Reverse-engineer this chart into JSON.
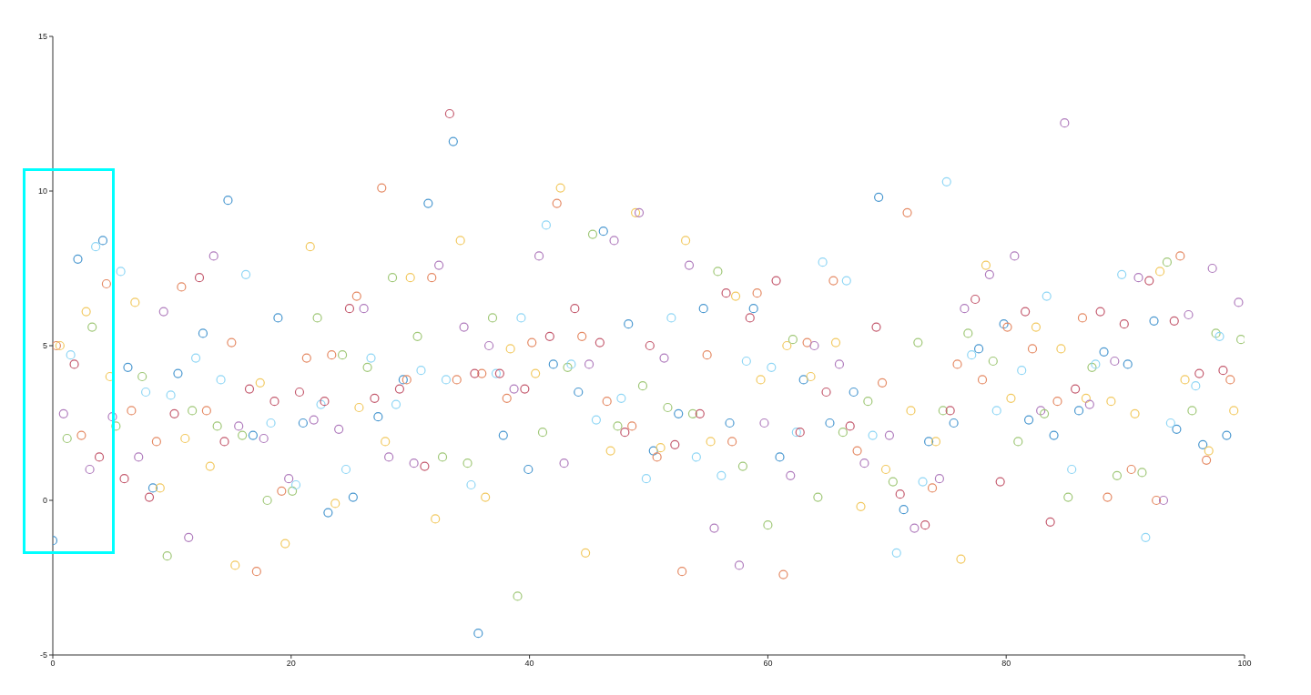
{
  "chart_data": {
    "type": "scatter",
    "marker": "circle",
    "xlim": [
      0,
      100
    ],
    "xticks": [
      0,
      20,
      40,
      60,
      80,
      100
    ],
    "ylim": [
      -5,
      15
    ],
    "yticks": [
      -5,
      0,
      5,
      10,
      15
    ],
    "series": [
      {
        "color": "#4a98d0",
        "x": [
          0,
          2.1,
          4.2,
          6.3,
          8.4,
          10.5,
          12.6,
          14.7,
          16.8,
          18.9,
          21.0,
          23.1,
          25.2,
          27.3,
          29.4,
          31.5,
          33.6,
          35.7,
          37.8,
          39.9,
          42.0,
          44.1,
          46.2,
          48.3,
          50.4,
          52.5,
          54.6,
          56.8,
          58.8,
          61.0,
          63.0,
          65.2,
          67.2,
          69.3,
          71.4,
          73.5,
          75.6,
          77.7,
          79.8,
          81.9,
          84.0,
          86.1,
          88.2,
          90.2,
          92.4,
          94.3,
          96.5,
          98.5
        ],
        "values": [
          -1.3,
          7.8,
          8.4,
          4.3,
          0.4,
          4.1,
          5.4,
          9.7,
          2.1,
          5.9,
          2.5,
          -0.4,
          0.1,
          2.7,
          3.9,
          9.6,
          11.6,
          -4.3,
          2.1,
          1.0,
          4.4,
          3.5,
          8.7,
          5.7,
          1.6,
          2.8,
          6.2,
          2.5,
          6.2,
          1.4,
          3.9,
          2.5,
          3.5,
          9.8,
          -0.3,
          1.9,
          2.5,
          4.9,
          5.7,
          2.6,
          2.1,
          2.9,
          4.8,
          4.4,
          5.8,
          2.3,
          1.8,
          2.1
        ]
      },
      {
        "color": "#e58a64",
        "x": [
          0.3,
          2.4,
          4.5,
          6.6,
          8.7,
          10.8,
          12.9,
          15.0,
          17.1,
          19.2,
          21.3,
          23.4,
          25.5,
          27.6,
          29.7,
          31.8,
          33.9,
          36.0,
          38.1,
          40.2,
          42.3,
          44.4,
          46.5,
          48.6,
          50.7,
          52.8,
          54.9,
          57.0,
          59.1,
          61.3,
          63.3,
          65.5,
          67.5,
          69.6,
          71.7,
          73.8,
          75.9,
          78.0,
          80.1,
          82.2,
          84.3,
          86.4,
          88.5,
          90.5,
          92.6,
          94.6,
          96.8,
          98.8
        ],
        "values": [
          5.0,
          2.1,
          7.0,
          2.9,
          1.9,
          6.9,
          2.9,
          5.1,
          -2.3,
          0.3,
          4.6,
          4.7,
          6.6,
          10.1,
          3.9,
          7.2,
          3.9,
          4.1,
          3.3,
          5.1,
          9.6,
          5.3,
          3.2,
          2.4,
          1.4,
          -2.3,
          4.7,
          1.9,
          6.7,
          -2.4,
          5.1,
          7.1,
          1.6,
          3.8,
          9.3,
          0.4,
          4.4,
          3.9,
          5.6,
          4.9,
          3.2,
          5.9,
          0.1,
          1.0,
          0.0,
          7.9,
          1.3,
          3.9
        ]
      },
      {
        "color": "#f2c960",
        "x": [
          0.6,
          2.8,
          4.8,
          6.9,
          9.0,
          11.1,
          13.2,
          15.3,
          17.4,
          19.5,
          21.6,
          23.7,
          25.7,
          27.9,
          30.0,
          32.1,
          34.2,
          36.3,
          38.4,
          40.5,
          42.6,
          44.7,
          46.8,
          48.9,
          51.0,
          53.1,
          55.2,
          57.3,
          59.4,
          61.6,
          63.6,
          65.7,
          67.8,
          69.9,
          72.0,
          74.1,
          76.2,
          78.3,
          80.4,
          82.5,
          84.6,
          86.7,
          88.8,
          90.8,
          92.9,
          95.0,
          97.0,
          99.1
        ],
        "values": [
          5.0,
          6.1,
          4.0,
          6.4,
          0.4,
          2.0,
          1.1,
          -2.1,
          3.8,
          -1.4,
          8.2,
          -0.1,
          3.0,
          1.9,
          7.2,
          -0.6,
          8.4,
          0.1,
          4.9,
          4.1,
          10.1,
          -1.7,
          1.6,
          9.3,
          1.7,
          8.4,
          1.9,
          6.6,
          3.9,
          5.0,
          4.0,
          5.1,
          -0.2,
          1.0,
          2.9,
          1.9,
          -1.9,
          7.6,
          3.3,
          5.6,
          4.9,
          3.3,
          3.2,
          2.8,
          7.4,
          3.9,
          1.6,
          2.9
        ]
      },
      {
        "color": "#b07cbd",
        "x": [
          0.9,
          3.1,
          5.0,
          7.2,
          9.3,
          11.4,
          13.5,
          15.6,
          17.7,
          19.8,
          21.9,
          24.0,
          26.1,
          28.2,
          30.3,
          32.4,
          34.5,
          36.6,
          38.7,
          40.8,
          42.9,
          45.0,
          47.1,
          49.2,
          51.3,
          53.4,
          55.5,
          57.6,
          59.7,
          61.9,
          63.9,
          66.0,
          68.1,
          70.2,
          72.3,
          74.4,
          76.5,
          78.6,
          80.7,
          82.9,
          84.9,
          87.0,
          89.1,
          91.1,
          93.2,
          95.3,
          97.3,
          99.5
        ],
        "values": [
          2.8,
          1.0,
          2.7,
          1.4,
          6.1,
          -1.2,
          7.9,
          2.4,
          2.0,
          0.7,
          2.6,
          2.3,
          6.2,
          1.4,
          1.2,
          7.6,
          5.6,
          5.0,
          3.6,
          7.9,
          1.2,
          4.4,
          8.4,
          9.3,
          4.6,
          7.6,
          -0.9,
          -2.1,
          2.5,
          0.8,
          5.0,
          4.4,
          1.2,
          2.1,
          -0.9,
          0.7,
          6.2,
          7.3,
          7.9,
          2.9,
          12.2,
          3.1,
          4.5,
          7.2,
          0.0,
          6.0,
          7.5,
          6.4
        ]
      },
      {
        "color": "#a0c878",
        "x": [
          1.2,
          3.3,
          5.3,
          7.5,
          9.6,
          11.7,
          13.8,
          15.9,
          18.0,
          20.1,
          22.2,
          24.3,
          26.4,
          28.5,
          30.6,
          32.7,
          34.8,
          36.9,
          39.0,
          41.1,
          43.2,
          45.3,
          47.4,
          49.5,
          51.6,
          53.7,
          55.8,
          57.9,
          60.0,
          62.1,
          64.2,
          66.3,
          68.4,
          70.5,
          72.6,
          74.7,
          76.8,
          78.9,
          81.0,
          83.2,
          85.2,
          87.2,
          89.3,
          91.4,
          93.5,
          95.6,
          97.6,
          99.7
        ],
        "values": [
          2.0,
          5.6,
          2.4,
          4.0,
          -1.8,
          2.9,
          2.4,
          2.1,
          0.0,
          0.3,
          5.9,
          4.7,
          4.3,
          7.2,
          5.3,
          1.4,
          1.2,
          5.9,
          -3.1,
          2.2,
          4.3,
          8.6,
          2.4,
          3.7,
          3.0,
          2.8,
          7.4,
          1.1,
          -0.8,
          5.2,
          0.1,
          2.2,
          3.2,
          0.6,
          5.1,
          2.9,
          5.4,
          4.5,
          1.9,
          2.8,
          0.1,
          4.3,
          0.8,
          0.9,
          7.7,
          2.9,
          5.4,
          5.2
        ]
      },
      {
        "color": "#8fd6f5",
        "x": [
          1.5,
          3.6,
          5.7,
          7.8,
          9.9,
          12.0,
          14.1,
          16.2,
          18.3,
          20.4,
          22.5,
          24.6,
          26.7,
          28.8,
          30.9,
          33.0,
          35.1,
          37.2,
          39.3,
          41.4,
          43.5,
          45.6,
          47.7,
          49.8,
          51.9,
          54.0,
          56.1,
          58.2,
          60.3,
          62.4,
          64.6,
          66.6,
          68.8,
          70.8,
          73.0,
          75.0,
          77.1,
          79.2,
          81.3,
          83.4,
          85.5,
          87.5,
          89.7,
          91.7,
          93.8,
          95.9,
          97.9
        ],
        "values": [
          4.7,
          8.2,
          7.4,
          3.5,
          3.4,
          4.6,
          3.9,
          7.3,
          2.5,
          0.5,
          3.1,
          1.0,
          4.6,
          3.1,
          4.2,
          3.9,
          0.5,
          4.1,
          5.9,
          8.9,
          4.4,
          2.6,
          3.3,
          0.7,
          5.9,
          1.4,
          0.8,
          4.5,
          4.3,
          2.2,
          7.7,
          7.1,
          2.1,
          -1.7,
          0.6,
          10.3,
          4.7,
          2.9,
          4.2,
          6.6,
          1.0,
          4.4,
          7.3,
          -1.2,
          2.5,
          3.7,
          5.3
        ]
      },
      {
        "color": "#c45a6e",
        "x": [
          1.8,
          3.9,
          6.0,
          8.1,
          10.2,
          12.3,
          14.4,
          16.5,
          18.6,
          20.7,
          22.8,
          24.9,
          27.0,
          29.1,
          31.2,
          33.3,
          35.4,
          37.5,
          39.6,
          41.7,
          43.8,
          45.9,
          48.0,
          50.1,
          52.2,
          54.3,
          56.5,
          58.5,
          60.7,
          62.7,
          64.9,
          66.9,
          69.1,
          71.1,
          73.2,
          75.3,
          77.4,
          79.5,
          81.6,
          83.7,
          85.8,
          87.9,
          89.9,
          92.0,
          94.1,
          96.2,
          98.2
        ],
        "values": [
          4.4,
          1.4,
          0.7,
          0.1,
          2.8,
          7.2,
          1.9,
          3.6,
          3.2,
          3.5,
          3.2,
          6.2,
          3.3,
          3.6,
          1.1,
          12.5,
          4.1,
          4.1,
          3.6,
          5.3,
          6.2,
          5.1,
          2.2,
          5.0,
          1.8,
          2.8,
          6.7,
          5.9,
          7.1,
          2.2,
          3.5,
          2.4,
          5.6,
          0.2,
          -0.8,
          2.9,
          6.5,
          0.6,
          6.1,
          -0.7,
          3.6,
          6.1,
          5.7,
          7.1,
          5.8,
          4.1,
          4.2
        ]
      }
    ]
  }
}
